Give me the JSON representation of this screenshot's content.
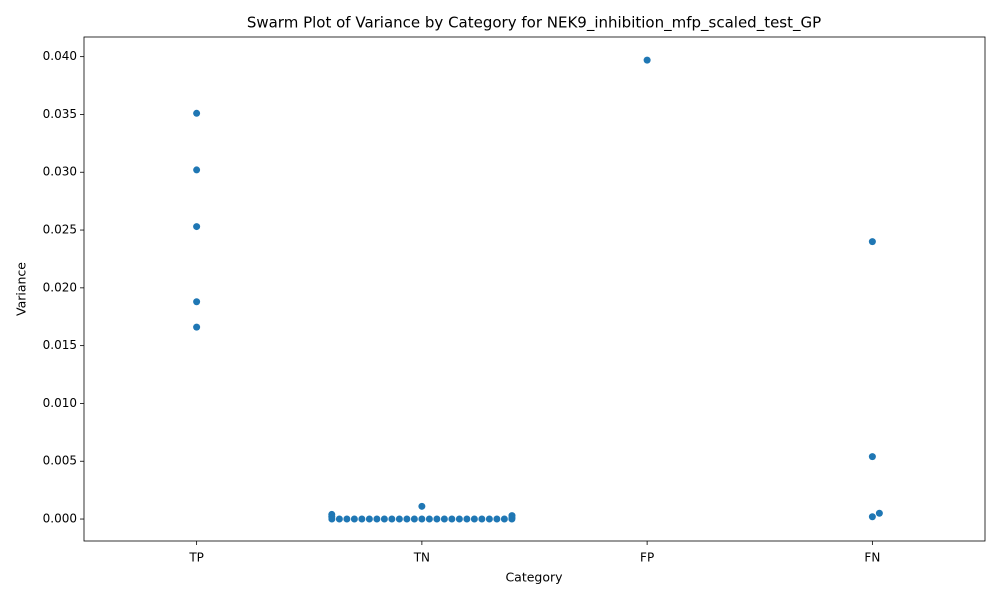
{
  "chart_data": {
    "type": "swarm",
    "title": "Swarm Plot of Variance by Category for NEK9_inhibition_mfp_scaled_test_GP",
    "x_label": "Category",
    "y_label": "Variance",
    "categories": [
      "TP",
      "TN",
      "FP",
      "FN"
    ],
    "values": [
      [
        0.0351,
        0.0302,
        0.0253,
        0.0188,
        0.0166
      ],
      [
        0.0011,
        0.0004,
        0.0003,
        0.0002,
        0.0001,
        0,
        0,
        0,
        0,
        0,
        0,
        0,
        0,
        0,
        0,
        0,
        0,
        0,
        0,
        0,
        0,
        0,
        0,
        0,
        0,
        0,
        0,
        0,
        0,
        0
      ],
      [
        0.0397
      ],
      [
        0.024,
        0.0054,
        0.0005,
        0.0002
      ]
    ],
    "color": "#1f77b4",
    "ylim": [
      -0.0019,
      0.0417
    ],
    "yticks": [
      {
        "value": 0,
        "label": "0.000"
      },
      {
        "value": 0.005,
        "label": "0.005"
      },
      {
        "value": 0.01,
        "label": "0.010"
      },
      {
        "value": 0.015,
        "label": "0.015"
      },
      {
        "value": 0.02,
        "label": "0.020"
      },
      {
        "value": 0.025,
        "label": "0.025"
      },
      {
        "value": 0.03,
        "label": "0.030"
      },
      {
        "value": 0.035,
        "label": "0.035"
      },
      {
        "value": 0.04,
        "label": "0.040"
      }
    ]
  }
}
